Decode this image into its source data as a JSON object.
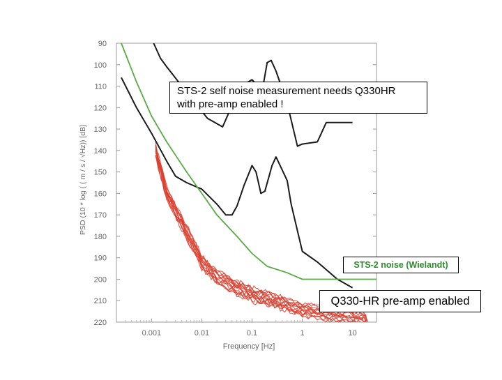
{
  "chart_data": {
    "type": "line",
    "xlabel": "Frequency [Hz]",
    "ylabel": "PSD (10 * log ( ( m / s / √Hz)) [dB]",
    "xscale": "log",
    "xlim": [
      0.0002,
      30
    ],
    "ylim": [
      90,
      220
    ],
    "y_inverted": true,
    "xticks": [
      {
        "value": 0.001,
        "label": "0.001"
      },
      {
        "value": 0.01,
        "label": "0.01"
      },
      {
        "value": 0.1,
        "label": "0.1"
      },
      {
        "value": 1,
        "label": "1"
      },
      {
        "value": 10,
        "label": "10"
      }
    ],
    "yticks": [
      90,
      100,
      110,
      120,
      130,
      140,
      150,
      160,
      170,
      180,
      190,
      200,
      210,
      220
    ],
    "grid": false,
    "colors": {
      "black_curves": "#1a1a1a",
      "green_curve": "#5aaa46",
      "red_curves": "#d9402f"
    },
    "series": [
      {
        "style": "black",
        "points": [
          [
            0.0011,
            90
          ],
          [
            0.0015,
            97
          ],
          [
            0.002,
            101
          ],
          [
            0.004,
            110
          ],
          [
            0.0087,
            120
          ],
          [
            0.013,
            125
          ],
          [
            0.026,
            129
          ],
          [
            0.04,
            119
          ],
          [
            0.06,
            110
          ],
          [
            0.1,
            107
          ],
          [
            0.16,
            112
          ],
          [
            0.2,
            99
          ],
          [
            0.24,
            98
          ],
          [
            0.3,
            103
          ],
          [
            0.5,
            118
          ],
          [
            0.8,
            138
          ],
          [
            1,
            137
          ],
          [
            2,
            136
          ],
          [
            3,
            127
          ],
          [
            8,
            127
          ],
          [
            10,
            127
          ]
        ]
      },
      {
        "style": "black",
        "points": [
          [
            0.00025,
            106
          ],
          [
            0.0005,
            120
          ],
          [
            0.001,
            132
          ],
          [
            0.002,
            145
          ],
          [
            0.003,
            152
          ],
          [
            0.005,
            155
          ],
          [
            0.01,
            158
          ],
          [
            0.02,
            165
          ],
          [
            0.03,
            170
          ],
          [
            0.04,
            170
          ],
          [
            0.05,
            166
          ],
          [
            0.07,
            156
          ],
          [
            0.1,
            147
          ],
          [
            0.12,
            150
          ],
          [
            0.15,
            160
          ],
          [
            0.18,
            159
          ],
          [
            0.25,
            147
          ],
          [
            0.3,
            143
          ],
          [
            0.5,
            154
          ],
          [
            0.6,
            165
          ],
          [
            1,
            187
          ],
          [
            2,
            192
          ],
          [
            5,
            200
          ],
          [
            10,
            204
          ]
        ]
      },
      {
        "style": "green",
        "points": [
          [
            0.00025,
            90
          ],
          [
            0.0005,
            108
          ],
          [
            0.001,
            124
          ],
          [
            0.002,
            136
          ],
          [
            0.005,
            150
          ],
          [
            0.01,
            160
          ],
          [
            0.02,
            170
          ],
          [
            0.05,
            180
          ],
          [
            0.1,
            188
          ],
          [
            0.2,
            194
          ],
          [
            0.5,
            197
          ],
          [
            1,
            200
          ],
          [
            10,
            200
          ],
          [
            30,
            200
          ]
        ]
      }
    ],
    "red_band": {
      "curve_count": 14,
      "style": "red",
      "center": [
        [
          0.0012,
          140
        ],
        [
          0.002,
          160
        ],
        [
          0.005,
          178
        ],
        [
          0.01,
          192
        ],
        [
          0.02,
          199
        ],
        [
          0.05,
          204
        ],
        [
          0.1,
          207
        ],
        [
          0.2,
          209
        ],
        [
          0.4,
          211
        ],
        [
          1,
          214
        ],
        [
          3,
          216
        ],
        [
          10,
          218
        ],
        [
          20,
          220
        ]
      ]
    },
    "annotations": [
      {
        "id": "main",
        "text": "STS-2 self noise measurement needs Q330HR\nwith pre-amp enabled !"
      },
      {
        "id": "sts2",
        "text": "STS-2 noise (Wielandt)"
      },
      {
        "id": "q330",
        "text": "Q330-HR pre-amp enabled"
      }
    ]
  }
}
